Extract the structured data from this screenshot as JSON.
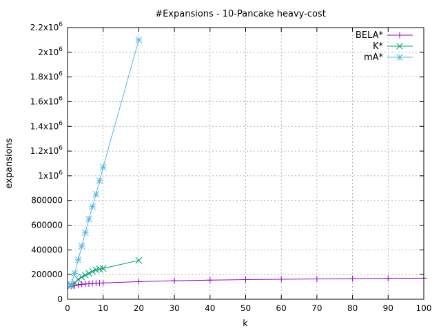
{
  "chart_data": {
    "type": "line",
    "title": "#Expansions - 10-Pancake heavy-cost",
    "xlabel": "k",
    "ylabel": "expansions",
    "xlim": [
      0,
      100
    ],
    "ylim": [
      0,
      2200000
    ],
    "grid": true,
    "legend_position": "top-right",
    "x_ticks": [
      {
        "value": 0,
        "label": "0"
      },
      {
        "value": 10,
        "label": "10"
      },
      {
        "value": 20,
        "label": "20"
      },
      {
        "value": 30,
        "label": "30"
      },
      {
        "value": 40,
        "label": "40"
      },
      {
        "value": 50,
        "label": "50"
      },
      {
        "value": 60,
        "label": "60"
      },
      {
        "value": 70,
        "label": "70"
      },
      {
        "value": 80,
        "label": "80"
      },
      {
        "value": 90,
        "label": "90"
      },
      {
        "value": 100,
        "label": "100"
      }
    ],
    "y_ticks": [
      {
        "value": 0,
        "base": "0",
        "exp": ""
      },
      {
        "value": 200000,
        "base": "200000",
        "exp": ""
      },
      {
        "value": 400000,
        "base": "400000",
        "exp": ""
      },
      {
        "value": 600000,
        "base": "600000",
        "exp": ""
      },
      {
        "value": 800000,
        "base": "800000",
        "exp": ""
      },
      {
        "value": 1000000,
        "base": "1x10",
        "exp": "6"
      },
      {
        "value": 1200000,
        "base": "1.2x10",
        "exp": "6"
      },
      {
        "value": 1400000,
        "base": "1.4x10",
        "exp": "6"
      },
      {
        "value": 1600000,
        "base": "1.6x10",
        "exp": "6"
      },
      {
        "value": 1800000,
        "base": "1.8x10",
        "exp": "6"
      },
      {
        "value": 2000000,
        "base": "2x10",
        "exp": "6"
      },
      {
        "value": 2200000,
        "base": "2.2x10",
        "exp": "6"
      }
    ],
    "series": [
      {
        "name": "BELA*",
        "color": "#9400d3",
        "marker": "plus",
        "x": [
          1,
          2,
          3,
          4,
          5,
          6,
          7,
          8,
          9,
          10,
          20,
          30,
          40,
          50,
          60,
          70,
          80,
          90,
          100
        ],
        "y": [
          105000,
          112000,
          117000,
          121000,
          124000,
          126000,
          128000,
          130000,
          131000,
          132000,
          143000,
          150000,
          155000,
          159000,
          162000,
          165000,
          167000,
          169000,
          171000
        ]
      },
      {
        "name": "K*",
        "color": "#009e73",
        "marker": "cross",
        "x": [
          1,
          2,
          3,
          4,
          5,
          6,
          7,
          8,
          9,
          10,
          20
        ],
        "y": [
          110000,
          135000,
          160000,
          180000,
          195000,
          210000,
          225000,
          238000,
          245000,
          250000,
          315000
        ]
      },
      {
        "name": "mA*",
        "color": "#56b4e9",
        "marker": "star",
        "x": [
          1,
          2,
          3,
          4,
          5,
          6,
          7,
          8,
          9,
          10,
          20
        ],
        "y": [
          120000,
          210000,
          320000,
          430000,
          540000,
          650000,
          750000,
          850000,
          960000,
          1070000,
          2100000
        ]
      }
    ]
  }
}
